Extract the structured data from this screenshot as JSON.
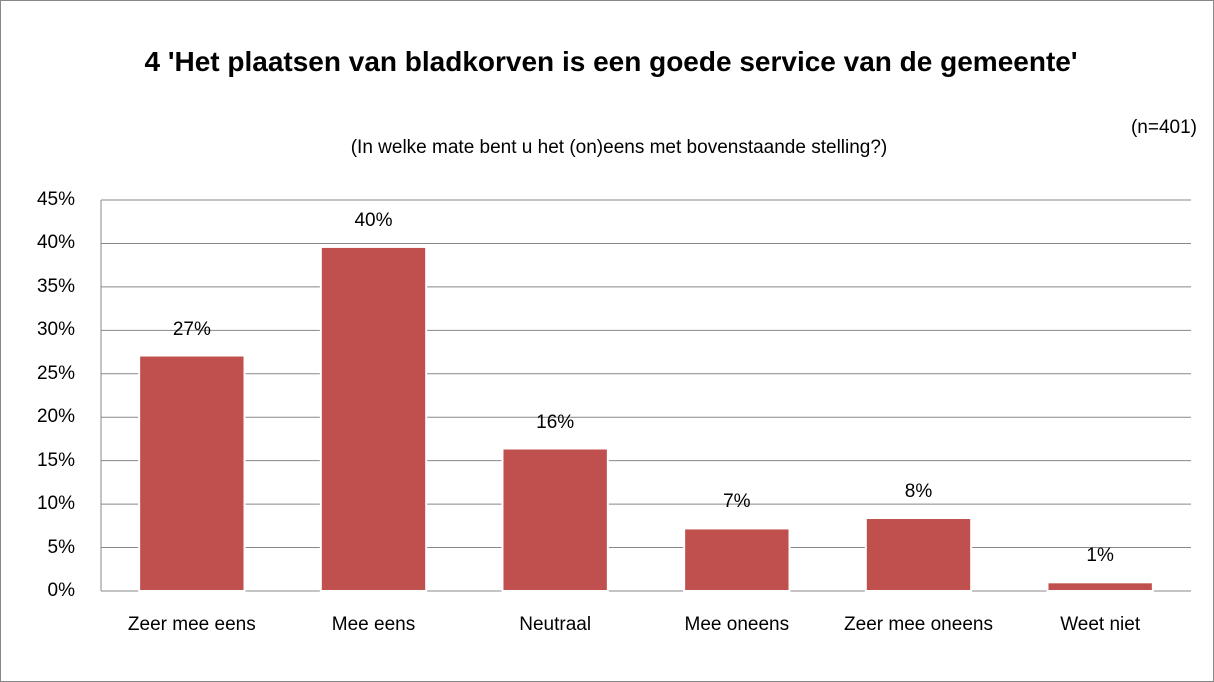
{
  "chart_data": {
    "type": "bar",
    "title": "4 'Het plaatsen van bladkorven is een goede service van de gemeente'",
    "subtitle": "(In welke mate bent u het (on)eens met bovenstaande stelling?)",
    "annotation": "(n=401)",
    "categories": [
      "Zeer mee eens",
      "Mee eens",
      "Neutraal",
      "Mee oneens",
      "Zeer mee oneens",
      "Weet niet"
    ],
    "values": [
      27.1,
      39.6,
      16.4,
      7.2,
      8.4,
      1.0
    ],
    "value_labels": [
      "27%",
      "40%",
      "16%",
      "7%",
      "8%",
      "1%"
    ],
    "color": "#c0504d",
    "ylim": [
      0,
      45
    ],
    "yticks": [
      {
        "value": 0,
        "label": "0%"
      },
      {
        "value": 5,
        "label": "5%"
      },
      {
        "value": 10,
        "label": "10%"
      },
      {
        "value": 15,
        "label": "15%"
      },
      {
        "value": 20,
        "label": "20%"
      },
      {
        "value": 25,
        "label": "25%"
      },
      {
        "value": 30,
        "label": "30%"
      },
      {
        "value": 35,
        "label": "35%"
      },
      {
        "value": 40,
        "label": "40%"
      },
      {
        "value": 45,
        "label": "45%"
      }
    ],
    "grid": true
  }
}
